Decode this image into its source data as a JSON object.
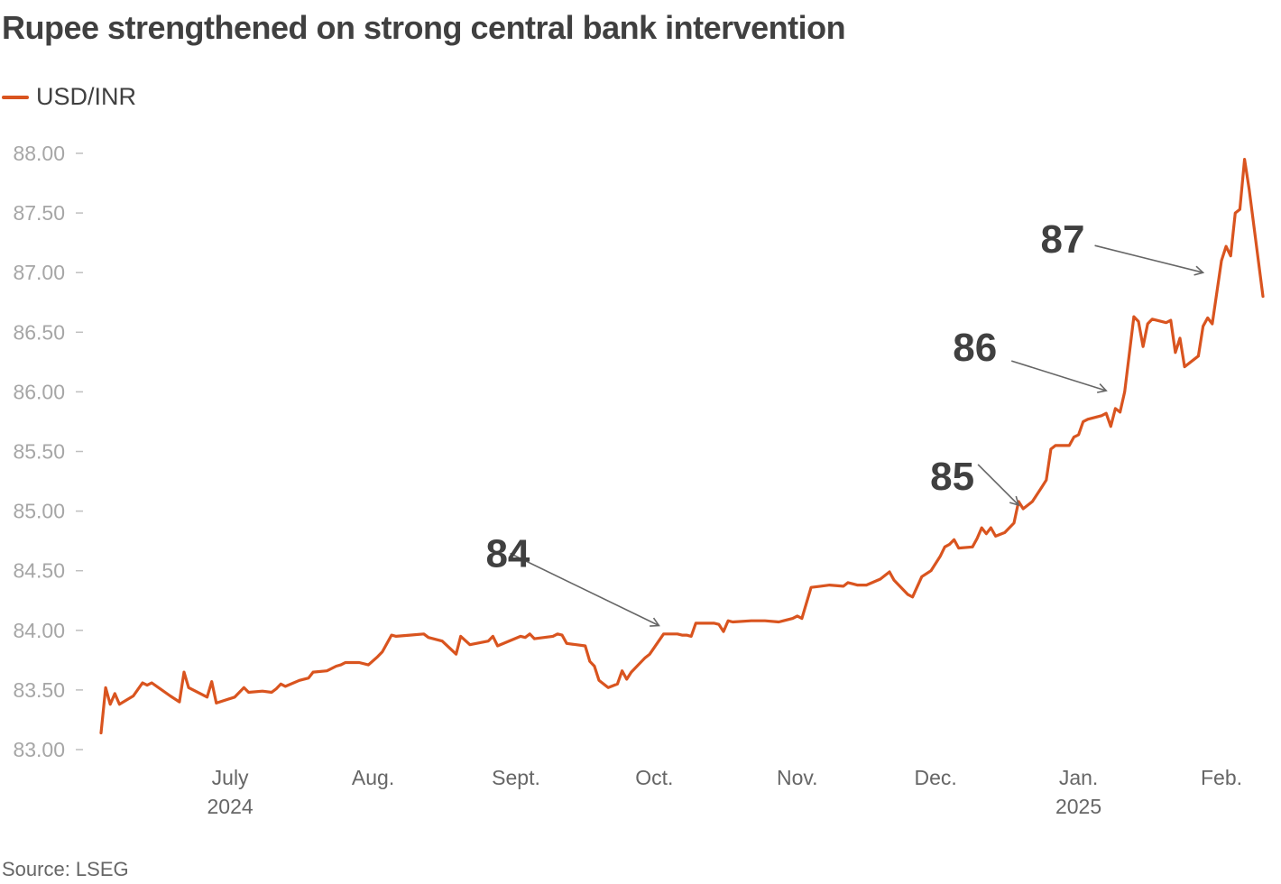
{
  "title": "Rupee strengthened on strong central bank intervention",
  "source": "Source: LSEG",
  "colors": {
    "series": "#d9541f",
    "text": "#404040",
    "tick": "#a6a6a6",
    "arrow": "#666666"
  },
  "chart_data": {
    "type": "line",
    "title": "Rupee strengthened on strong central bank intervention",
    "xlabel": "",
    "ylabel": "",
    "ylim": [
      83.0,
      88.0
    ],
    "xlim": [
      "2024-06-03",
      "2025-02-10"
    ],
    "grid": false,
    "legend_position": "top-left",
    "y_ticks": [
      "83.00",
      "83.50",
      "84.00",
      "84.50",
      "85.00",
      "85.50",
      "86.00",
      "86.50",
      "87.00",
      "87.50",
      "88.00"
    ],
    "x_ticks": [
      {
        "label": "July",
        "sublabel": "2024",
        "date": "2024-07-01"
      },
      {
        "label": "Aug.",
        "sublabel": "",
        "date": "2024-08-01"
      },
      {
        "label": "Sept.",
        "sublabel": "",
        "date": "2024-09-01"
      },
      {
        "label": "Oct.",
        "sublabel": "",
        "date": "2024-10-01"
      },
      {
        "label": "Nov.",
        "sublabel": "",
        "date": "2024-11-01"
      },
      {
        "label": "Dec.",
        "sublabel": "",
        "date": "2024-12-01"
      },
      {
        "label": "Jan.",
        "sublabel": "2025",
        "date": "2025-01-01"
      },
      {
        "label": "Feb.",
        "sublabel": "",
        "date": "2025-02-01"
      }
    ],
    "series": [
      {
        "name": "USD/INR",
        "points": [
          [
            "2024-06-03",
            83.14
          ],
          [
            "2024-06-04",
            83.52
          ],
          [
            "2024-06-05",
            83.38
          ],
          [
            "2024-06-06",
            83.47
          ],
          [
            "2024-06-07",
            83.38
          ],
          [
            "2024-06-10",
            83.45
          ],
          [
            "2024-06-12",
            83.56
          ],
          [
            "2024-06-13",
            83.54
          ],
          [
            "2024-06-14",
            83.56
          ],
          [
            "2024-06-18",
            83.45
          ],
          [
            "2024-06-20",
            83.4
          ],
          [
            "2024-06-21",
            83.65
          ],
          [
            "2024-06-22",
            83.52
          ],
          [
            "2024-06-26",
            83.44
          ],
          [
            "2024-06-27",
            83.57
          ],
          [
            "2024-06-28",
            83.39
          ],
          [
            "2024-07-02",
            83.44
          ],
          [
            "2024-07-04",
            83.52
          ],
          [
            "2024-07-05",
            83.48
          ],
          [
            "2024-07-08",
            83.49
          ],
          [
            "2024-07-10",
            83.48
          ],
          [
            "2024-07-11",
            83.51
          ],
          [
            "2024-07-12",
            83.55
          ],
          [
            "2024-07-13",
            83.53
          ],
          [
            "2024-07-16",
            83.58
          ],
          [
            "2024-07-18",
            83.6
          ],
          [
            "2024-07-19",
            83.65
          ],
          [
            "2024-07-22",
            83.66
          ],
          [
            "2024-07-24",
            83.7
          ],
          [
            "2024-07-25",
            83.71
          ],
          [
            "2024-07-26",
            83.73
          ],
          [
            "2024-07-29",
            83.73
          ],
          [
            "2024-07-31",
            83.71
          ],
          [
            "2024-08-02",
            83.78
          ],
          [
            "2024-08-03",
            83.82
          ],
          [
            "2024-08-05",
            83.96
          ],
          [
            "2024-08-06",
            83.95
          ],
          [
            "2024-08-09",
            83.96
          ],
          [
            "2024-08-12",
            83.97
          ],
          [
            "2024-08-13",
            83.94
          ],
          [
            "2024-08-16",
            83.91
          ],
          [
            "2024-08-19",
            83.8
          ],
          [
            "2024-08-20",
            83.95
          ],
          [
            "2024-08-22",
            83.88
          ],
          [
            "2024-08-26",
            83.91
          ],
          [
            "2024-08-27",
            83.95
          ],
          [
            "2024-08-28",
            83.87
          ],
          [
            "2024-09-02",
            83.95
          ],
          [
            "2024-09-03",
            83.94
          ],
          [
            "2024-09-04",
            83.97
          ],
          [
            "2024-09-05",
            83.93
          ],
          [
            "2024-09-09",
            83.95
          ],
          [
            "2024-09-10",
            83.97
          ],
          [
            "2024-09-11",
            83.96
          ],
          [
            "2024-09-12",
            83.89
          ],
          [
            "2024-09-16",
            83.87
          ],
          [
            "2024-09-17",
            83.74
          ],
          [
            "2024-09-18",
            83.7
          ],
          [
            "2024-09-19",
            83.58
          ],
          [
            "2024-09-21",
            83.52
          ],
          [
            "2024-09-23",
            83.55
          ],
          [
            "2024-09-24",
            83.66
          ],
          [
            "2024-09-25",
            83.59
          ],
          [
            "2024-09-26",
            83.65
          ],
          [
            "2024-09-29",
            83.77
          ],
          [
            "2024-09-30",
            83.8
          ],
          [
            "2024-10-03",
            83.97
          ],
          [
            "2024-10-06",
            83.97
          ],
          [
            "2024-10-07",
            83.96
          ],
          [
            "2024-10-08",
            83.96
          ],
          [
            "2024-10-09",
            83.95
          ],
          [
            "2024-10-10",
            84.06
          ],
          [
            "2024-10-14",
            84.06
          ],
          [
            "2024-10-15",
            84.05
          ],
          [
            "2024-10-16",
            83.99
          ],
          [
            "2024-10-17",
            84.08
          ],
          [
            "2024-10-18",
            84.07
          ],
          [
            "2024-10-22",
            84.08
          ],
          [
            "2024-10-25",
            84.08
          ],
          [
            "2024-10-28",
            84.07
          ],
          [
            "2024-10-29",
            84.08
          ],
          [
            "2024-10-31",
            84.1
          ],
          [
            "2024-11-01",
            84.12
          ],
          [
            "2024-11-02",
            84.1
          ],
          [
            "2024-11-04",
            84.36
          ],
          [
            "2024-11-06",
            84.37
          ],
          [
            "2024-11-08",
            84.38
          ],
          [
            "2024-11-11",
            84.37
          ],
          [
            "2024-11-12",
            84.4
          ],
          [
            "2024-11-13",
            84.39
          ],
          [
            "2024-11-14",
            84.38
          ],
          [
            "2024-11-16",
            84.38
          ],
          [
            "2024-11-19",
            84.43
          ],
          [
            "2024-11-21",
            84.49
          ],
          [
            "2024-11-22",
            84.42
          ],
          [
            "2024-11-25",
            84.3
          ],
          [
            "2024-11-26",
            84.28
          ],
          [
            "2024-11-28",
            84.45
          ],
          [
            "2024-11-30",
            84.5
          ],
          [
            "2024-12-02",
            84.62
          ],
          [
            "2024-12-03",
            84.7
          ],
          [
            "2024-12-04",
            84.72
          ],
          [
            "2024-12-05",
            84.76
          ],
          [
            "2024-12-06",
            84.69
          ],
          [
            "2024-12-09",
            84.7
          ],
          [
            "2024-12-10",
            84.77
          ],
          [
            "2024-12-11",
            84.86
          ],
          [
            "2024-12-12",
            84.81
          ],
          [
            "2024-12-13",
            84.86
          ],
          [
            "2024-12-14",
            84.79
          ],
          [
            "2024-12-16",
            84.82
          ],
          [
            "2024-12-18",
            84.9
          ],
          [
            "2024-12-19",
            85.08
          ],
          [
            "2024-12-20",
            85.02
          ],
          [
            "2024-12-22",
            85.08
          ],
          [
            "2024-12-24",
            85.2
          ],
          [
            "2024-12-25",
            85.26
          ],
          [
            "2024-12-26",
            85.52
          ],
          [
            "2024-12-27",
            85.55
          ],
          [
            "2024-12-30",
            85.55
          ],
          [
            "2024-12-31",
            85.62
          ],
          [
            "2025-01-01",
            85.64
          ],
          [
            "2025-01-02",
            85.75
          ],
          [
            "2025-01-03",
            85.77
          ],
          [
            "2025-01-06",
            85.8
          ],
          [
            "2025-01-07",
            85.82
          ],
          [
            "2025-01-08",
            85.71
          ],
          [
            "2025-01-09",
            85.86
          ],
          [
            "2025-01-10",
            85.83
          ],
          [
            "2025-01-11",
            86.0
          ],
          [
            "2025-01-13",
            86.63
          ],
          [
            "2025-01-14",
            86.59
          ],
          [
            "2025-01-15",
            86.38
          ],
          [
            "2025-01-16",
            86.57
          ],
          [
            "2025-01-17",
            86.61
          ],
          [
            "2025-01-20",
            86.58
          ],
          [
            "2025-01-21",
            86.6
          ],
          [
            "2025-01-22",
            86.33
          ],
          [
            "2025-01-23",
            86.45
          ],
          [
            "2025-01-24",
            86.21
          ],
          [
            "2025-01-27",
            86.3
          ],
          [
            "2025-01-28",
            86.55
          ],
          [
            "2025-01-29",
            86.62
          ],
          [
            "2025-01-30",
            86.57
          ],
          [
            "2025-02-01",
            87.1
          ],
          [
            "2025-02-02",
            87.22
          ],
          [
            "2025-02-03",
            87.14
          ],
          [
            "2025-02-04",
            87.5
          ],
          [
            "2025-02-05",
            87.53
          ],
          [
            "2025-02-06",
            87.95
          ],
          [
            "2025-02-07",
            87.7
          ],
          [
            "2025-02-10",
            86.8
          ]
        ]
      }
    ],
    "annotations": [
      {
        "text": "84",
        "target_date": "2024-10-02",
        "target_value": 84.04
      },
      {
        "text": "85",
        "target_date": "2024-12-19",
        "target_value": 85.05
      },
      {
        "text": "86",
        "target_date": "2025-01-07",
        "target_value": 86.01
      },
      {
        "text": "87",
        "target_date": "2025-01-28",
        "target_value": 87.0
      }
    ]
  }
}
